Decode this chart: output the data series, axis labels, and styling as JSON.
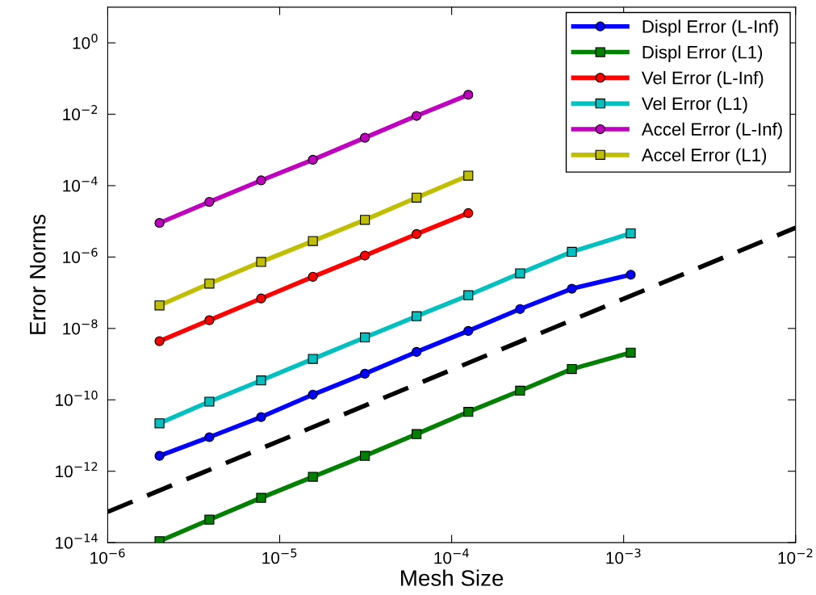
{
  "chart_data": {
    "type": "line",
    "xlabel": "Mesh Size",
    "ylabel": "Error Norms",
    "log": "xy",
    "grid": false,
    "legend": "top right",
    "x": [
      2e-06,
      3.9e-06,
      7.8e-06,
      1.56e-05,
      3.13e-05,
      6.25e-05,
      0.000125,
      0.00025,
      0.0005,
      0.0011
    ],
    "series": [
      {
        "name": "Displ Error (L-Inf)",
        "color": "#0000ff",
        "marker": "circle",
        "values": [
          2.7e-12,
          9e-12,
          3.3e-11,
          1.4e-10,
          5.4e-10,
          2.2e-09,
          8.5e-09,
          3.5e-08,
          1.3e-07,
          3.2e-07
        ]
      },
      {
        "name": "Displ Error (L1)",
        "color": "#008000",
        "marker": "square",
        "values": [
          1.1e-14,
          4.4e-14,
          1.8e-13,
          7e-13,
          2.7e-12,
          1.1e-11,
          4.6e-11,
          1.8e-10,
          7.3e-10,
          2.1e-09
        ]
      },
      {
        "name": "Vel Error (L-Inf)",
        "color": "#ff0000",
        "marker": "circle",
        "values": [
          4.4e-09,
          1.7e-08,
          6.9e-08,
          2.8e-07,
          1.1e-06,
          4.4e-06,
          1.7e-05,
          null,
          null,
          null
        ]
      },
      {
        "name": "Vel Error (L1)",
        "color": "#00bfbf",
        "marker": "square",
        "values": [
          2.2e-11,
          8.9e-11,
          3.5e-10,
          1.4e-09,
          5.6e-09,
          2.2e-08,
          8.5e-08,
          3.5e-07,
          1.4e-06,
          4.6e-06
        ]
      },
      {
        "name": "Accel Error (L-Inf)",
        "color": "#bf00bf",
        "marker": "circle",
        "values": [
          9e-06,
          3.5e-05,
          0.00014,
          0.00053,
          0.0022,
          0.009,
          0.035,
          null,
          null,
          null
        ]
      },
      {
        "name": "Accel Error (L1)",
        "color": "#bfbf00",
        "marker": "square",
        "values": [
          4.4e-08,
          1.8e-07,
          7.3e-07,
          2.8e-06,
          1.1e-05,
          4.6e-05,
          0.00019,
          null,
          null,
          null
        ]
      },
      {
        "color": "#000000",
        "marker": "none",
        "line_style": "dashed",
        "x": [
          1e-06,
          0.01
        ],
        "values": [
          7.3e-14,
          6.6e-06
        ]
      }
    ],
    "xlim": [
      1e-06,
      0.01
    ],
    "ylim": [
      1e-14,
      10
    ],
    "xticks": [
      {
        "value": 1e-06,
        "label": "10$^{−6}$"
      },
      {
        "value": 1e-05,
        "label": "10$^{−5}$"
      },
      {
        "value": 0.0001,
        "label": "10$^{−4}$"
      },
      {
        "value": 0.001,
        "label": "10$^{−3}$"
      },
      {
        "value": 0.01,
        "label": "10$^{−2}$"
      }
    ],
    "yticks": [
      {
        "value": 1e-14,
        "label": "10$^{−14}$"
      },
      {
        "value": 1e-12,
        "label": "10$^{−12}$"
      },
      {
        "value": 1e-10,
        "label": "10$^{−10}$"
      },
      {
        "value": 1e-08,
        "label": "10$^{−8}$"
      },
      {
        "value": 1e-06,
        "label": "10$^{−6}$"
      },
      {
        "value": 0.0001,
        "label": "10$^{−4}$"
      },
      {
        "value": 0.01,
        "label": "10$^{−2}$"
      },
      {
        "value": 1,
        "label": "10$^{0}$"
      }
    ]
  }
}
